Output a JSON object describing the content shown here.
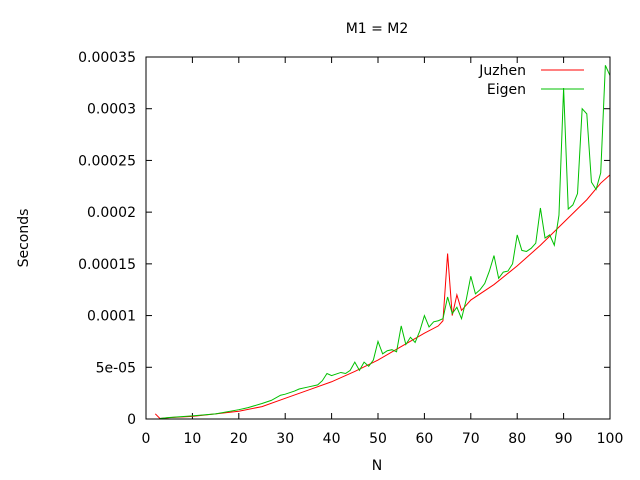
{
  "chart_data": {
    "type": "line",
    "title": "M1 = M2",
    "xlabel": "N",
    "ylabel": "Seconds",
    "xlim": [
      0,
      100
    ],
    "ylim": [
      0,
      0.00035
    ],
    "x_ticks": [
      0,
      10,
      20,
      30,
      40,
      50,
      60,
      70,
      80,
      90,
      100
    ],
    "x_tick_labels": [
      "0",
      "10",
      "20",
      "30",
      "40",
      "50",
      "60",
      "70",
      "80",
      "90",
      "100"
    ],
    "y_ticks": [
      0,
      5e-05,
      0.0001,
      0.00015,
      0.0002,
      0.00025,
      0.0003,
      0.00035
    ],
    "y_tick_labels": [
      "0",
      "5e-05",
      "0.0001",
      "0.00015",
      "0.0002",
      "0.00025",
      "0.0003",
      "0.00035"
    ],
    "grid": false,
    "legend_position": "top-right",
    "series": [
      {
        "name": "Juzhen",
        "color": "#ff0000",
        "x": [
          2,
          3,
          5,
          10,
          15,
          20,
          25,
          30,
          35,
          40,
          45,
          50,
          55,
          60,
          63,
          64,
          65,
          66,
          67,
          68,
          70,
          75,
          80,
          85,
          90,
          95,
          98,
          100
        ],
        "y": [
          5e-06,
          5e-07,
          1.3e-06,
          2.5e-06,
          5e-06,
          7.5e-06,
          1.2e-05,
          2e-05,
          2.8e-05,
          3.6e-05,
          4.6e-05,
          5.7e-05,
          7e-05,
          8.3e-05,
          9e-05,
          9.5e-05,
          0.00016,
          0.0001,
          0.00012,
          0.000105,
          0.000115,
          0.00013,
          0.000148,
          0.000168,
          0.00019,
          0.000212,
          0.000228,
          0.000236
        ]
      },
      {
        "name": "Eigen",
        "color": "#00c000",
        "x": [
          3,
          5,
          10,
          15,
          20,
          22,
          25,
          27,
          29,
          30,
          32,
          33,
          35,
          37,
          38,
          39,
          40,
          42,
          43,
          44,
          45,
          46,
          47,
          48,
          49,
          50,
          51,
          52,
          53,
          54,
          55,
          56,
          57,
          58,
          59,
          60,
          61,
          62,
          63,
          64,
          65,
          66,
          67,
          68,
          69,
          70,
          71,
          72,
          73,
          74,
          75,
          76,
          77,
          78,
          79,
          80,
          81,
          82,
          83,
          84,
          85,
          86,
          87,
          88,
          89,
          90,
          91,
          92,
          93,
          94,
          95,
          96,
          97,
          98,
          99,
          100
        ],
        "y": [
          5e-07,
          1.5e-06,
          3e-06,
          5e-06,
          9e-06,
          1.1e-05,
          1.5e-05,
          1.8e-05,
          2.3e-05,
          2.4e-05,
          2.7e-05,
          2.9e-05,
          3.1e-05,
          3.3e-05,
          3.7e-05,
          4.4e-05,
          4.2e-05,
          4.5e-05,
          4.4e-05,
          4.7e-05,
          5.5e-05,
          4.7e-05,
          5.5e-05,
          5.1e-05,
          5.7e-05,
          7.5e-05,
          6.3e-05,
          6.6e-05,
          6.7e-05,
          6.5e-05,
          9e-05,
          7.2e-05,
          7.9e-05,
          7.4e-05,
          8.5e-05,
          0.0001,
          8.9e-05,
          9.4e-05,
          9.5e-05,
          9.7e-05,
          0.000118,
          0.000102,
          0.000108,
          9.7e-05,
          0.000115,
          0.000138,
          0.000121,
          0.000125,
          0.000131,
          0.000143,
          0.000158,
          0.000136,
          0.000142,
          0.000143,
          0.00015,
          0.000178,
          0.000163,
          0.000162,
          0.000165,
          0.00017,
          0.000204,
          0.000175,
          0.000178,
          0.000168,
          0.000197,
          0.00032,
          0.000203,
          0.000207,
          0.000218,
          0.0003,
          0.000295,
          0.000229,
          0.000222,
          0.000238,
          0.000342,
          0.000332
        ]
      }
    ]
  }
}
